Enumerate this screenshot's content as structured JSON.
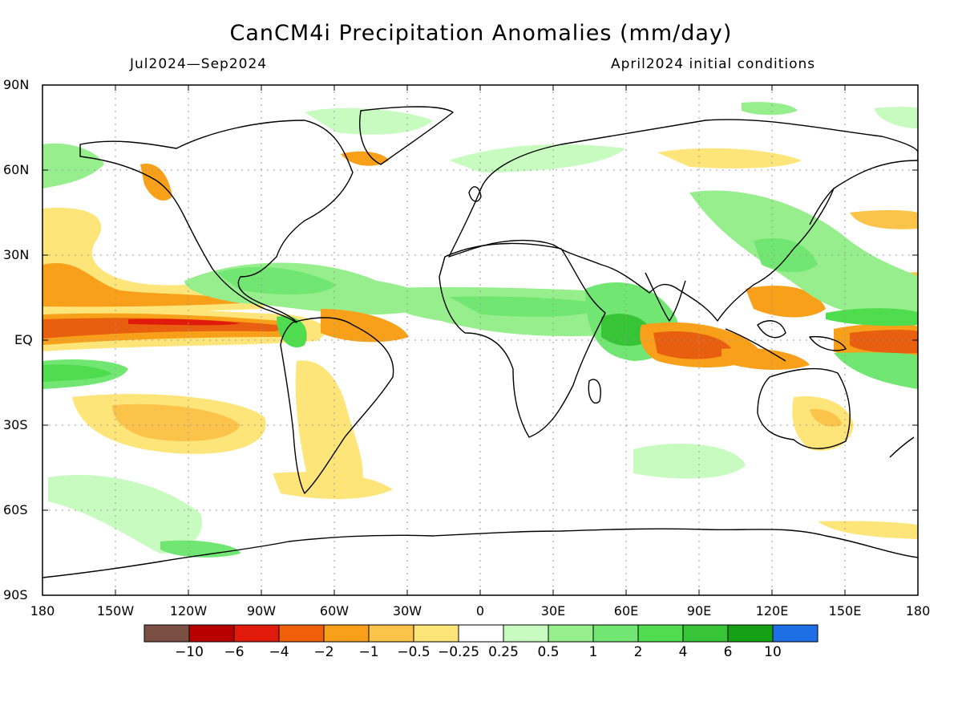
{
  "title": "CanCM4i Precipitation Anomalies (mm/day)",
  "period": "Jul2024—Sep2024",
  "init": "April2024 initial conditions",
  "lat_labels": [
    "90N",
    "60N",
    "30N",
    "EQ",
    "30S",
    "60S",
    "90S"
  ],
  "lon_labels": [
    "180",
    "150W",
    "120W",
    "90W",
    "60W",
    "30W",
    "0",
    "30E",
    "60E",
    "90E",
    "120E",
    "150E",
    "180"
  ],
  "colorbar": {
    "colors": [
      "#7a5044",
      "#b80000",
      "#e01b0b",
      "#f05f0a",
      "#f8a01a",
      "#fbc34a",
      "#fee57a",
      "#ffffff",
      "#c8fbc0",
      "#96ef8c",
      "#72e672",
      "#4fdc4f",
      "#37c437",
      "#14a014",
      "#1e6ee6"
    ],
    "labels": [
      "−10",
      "−6",
      "−4",
      "−2",
      "−1",
      "−0.5",
      "−0.25",
      "0.25",
      "0.5",
      "1",
      "2",
      "4",
      "6",
      "10"
    ]
  },
  "anomaly_colors": {
    "dry_strong": "#e8600f",
    "dry_medium": "#f8a01a",
    "dry_light": "#fee57a",
    "wet_light": "#c8fbc0",
    "wet_medium": "#72e672",
    "wet_strong": "#37c437"
  }
}
